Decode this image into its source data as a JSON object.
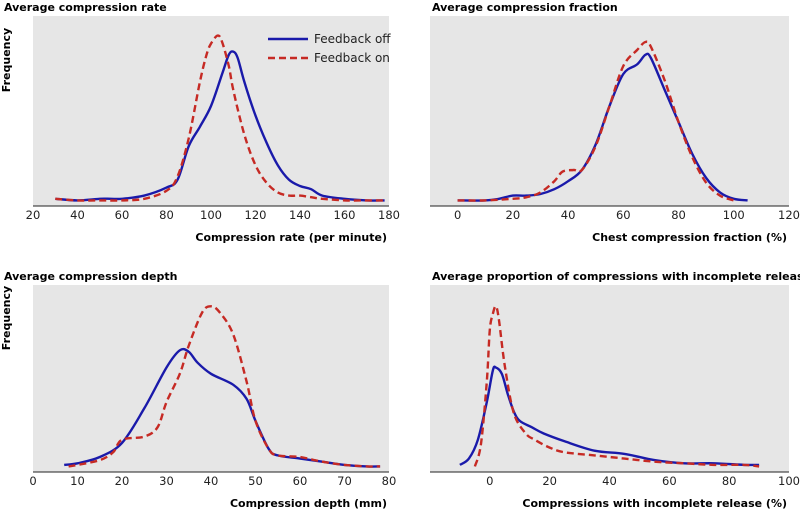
{
  "chart_data": [
    {
      "type": "line",
      "title": "Average compression rate",
      "xlabel": "Compression rate (per minute)",
      "ylabel": "Frequency",
      "xlim": [
        20,
        180
      ],
      "xticks": [
        20,
        40,
        60,
        80,
        100,
        120,
        140,
        160,
        180
      ],
      "ylim": [
        0,
        1
      ],
      "legend": "top-right",
      "series": [
        {
          "name": "Feedback off",
          "color": "#1a1aaa",
          "style": "solid",
          "x": [
            30,
            40,
            50,
            55,
            60,
            70,
            80,
            85,
            90,
            95,
            100,
            105,
            108,
            110,
            112,
            115,
            120,
            125,
            130,
            135,
            140,
            145,
            150,
            160,
            170,
            178
          ],
          "y": [
            0.02,
            0.01,
            0.02,
            0.02,
            0.02,
            0.04,
            0.09,
            0.14,
            0.35,
            0.47,
            0.6,
            0.8,
            0.92,
            0.94,
            0.9,
            0.75,
            0.54,
            0.37,
            0.23,
            0.14,
            0.1,
            0.08,
            0.04,
            0.02,
            0.01,
            0.01
          ]
        },
        {
          "name": "Feedback on",
          "color": "#c62a24",
          "style": "dashed",
          "x": [
            30,
            40,
            50,
            60,
            70,
            80,
            85,
            90,
            95,
            98,
            100,
            103,
            105,
            108,
            110,
            115,
            120,
            125,
            130,
            135,
            140,
            145,
            150,
            160,
            170,
            178
          ],
          "y": [
            0.02,
            0.01,
            0.01,
            0.01,
            0.02,
            0.07,
            0.16,
            0.4,
            0.75,
            0.92,
            0.99,
            1.04,
            1.0,
            0.85,
            0.7,
            0.42,
            0.23,
            0.12,
            0.06,
            0.04,
            0.04,
            0.03,
            0.02,
            0.01,
            0.01,
            0.01
          ]
        }
      ]
    },
    {
      "type": "line",
      "title": "Average compression fraction",
      "xlabel": "Chest compression fraction (%)",
      "ylabel": "",
      "xlim": [
        -10,
        120
      ],
      "xticks": [
        0,
        20,
        40,
        60,
        80,
        100,
        120
      ],
      "ylim": [
        0,
        1
      ],
      "series": [
        {
          "name": "Feedback off",
          "color": "#1a1aaa",
          "style": "solid",
          "x": [
            0,
            10,
            15,
            20,
            25,
            30,
            35,
            40,
            45,
            50,
            55,
            60,
            65,
            68,
            70,
            75,
            80,
            85,
            90,
            95,
            100,
            105
          ],
          "y": [
            0.01,
            0.01,
            0.02,
            0.04,
            0.04,
            0.05,
            0.08,
            0.13,
            0.2,
            0.36,
            0.6,
            0.8,
            0.86,
            0.92,
            0.9,
            0.7,
            0.5,
            0.3,
            0.15,
            0.06,
            0.02,
            0.01
          ]
        },
        {
          "name": "Feedback on",
          "color": "#c62a24",
          "style": "dashed",
          "x": [
            0,
            10,
            20,
            25,
            30,
            35,
            38,
            42,
            45,
            50,
            55,
            60,
            65,
            68,
            70,
            75,
            80,
            85,
            90,
            95,
            100
          ],
          "y": [
            0.01,
            0.01,
            0.02,
            0.03,
            0.06,
            0.13,
            0.19,
            0.2,
            0.2,
            0.35,
            0.6,
            0.85,
            0.95,
            1.0,
            0.97,
            0.76,
            0.5,
            0.28,
            0.12,
            0.04,
            0.01
          ]
        }
      ]
    },
    {
      "type": "line",
      "title": "Average compression depth",
      "xlabel": "Compression depth (mm)",
      "ylabel": "Frequency",
      "xlim": [
        0,
        80
      ],
      "xticks": [
        0,
        10,
        20,
        30,
        40,
        50,
        60,
        70,
        80
      ],
      "ylim": [
        0,
        1
      ],
      "series": [
        {
          "name": "Feedback off",
          "color": "#1a1aaa",
          "style": "solid",
          "x": [
            7,
            10,
            15,
            20,
            25,
            30,
            33,
            35,
            37,
            40,
            45,
            48,
            50,
            53,
            55,
            60,
            65,
            70,
            75,
            78
          ],
          "y": [
            0.02,
            0.03,
            0.07,
            0.16,
            0.38,
            0.64,
            0.75,
            0.74,
            0.67,
            0.6,
            0.53,
            0.44,
            0.3,
            0.12,
            0.08,
            0.06,
            0.04,
            0.02,
            0.01,
            0.01
          ]
        },
        {
          "name": "Feedback on",
          "color": "#c62a24",
          "style": "dashed",
          "x": [
            8,
            10,
            15,
            18,
            20,
            25,
            28,
            30,
            33,
            35,
            38,
            40,
            42,
            45,
            48,
            50,
            53,
            55,
            60,
            65,
            70,
            75,
            78
          ],
          "y": [
            0.01,
            0.02,
            0.05,
            0.1,
            0.18,
            0.2,
            0.26,
            0.42,
            0.6,
            0.78,
            0.99,
            1.03,
            0.99,
            0.85,
            0.55,
            0.3,
            0.12,
            0.08,
            0.07,
            0.04,
            0.02,
            0.01,
            0.01
          ]
        }
      ]
    },
    {
      "type": "line",
      "title": "Average proportion of compressions with incomplete release",
      "xlabel": "Compressions with incomplete release (%)",
      "ylabel": "",
      "xlim": [
        -20,
        100
      ],
      "xticks": [
        0,
        20,
        40,
        60,
        80,
        100
      ],
      "ylim": [
        0,
        1
      ],
      "series": [
        {
          "name": "Feedback off",
          "color": "#1a1aaa",
          "style": "solid",
          "x": [
            -10,
            -7,
            -4,
            -1,
            1,
            2,
            4,
            6,
            8,
            10,
            14,
            18,
            25,
            35,
            45,
            55,
            65,
            75,
            85,
            90
          ],
          "y": [
            0.02,
            0.06,
            0.18,
            0.42,
            0.62,
            0.64,
            0.6,
            0.47,
            0.36,
            0.3,
            0.26,
            0.22,
            0.17,
            0.11,
            0.09,
            0.05,
            0.03,
            0.03,
            0.02,
            0.02
          ]
        },
        {
          "name": "Feedback on",
          "color": "#c62a24",
          "style": "dashed",
          "x": [
            -5,
            -3,
            -1,
            0,
            1,
            2,
            3,
            5,
            8,
            12,
            15,
            20,
            25,
            35,
            45,
            55,
            65,
            75,
            85,
            90
          ],
          "y": [
            0.01,
            0.15,
            0.55,
            0.88,
            0.98,
            1.03,
            0.95,
            0.65,
            0.35,
            0.22,
            0.18,
            0.13,
            0.1,
            0.08,
            0.06,
            0.04,
            0.03,
            0.02,
            0.02,
            0.01
          ]
        }
      ]
    }
  ]
}
